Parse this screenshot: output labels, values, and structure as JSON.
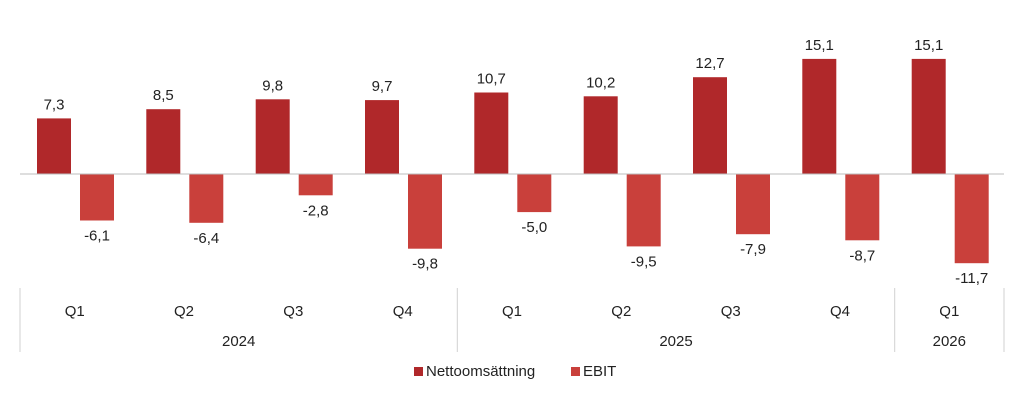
{
  "chart_data": {
    "type": "bar",
    "categories": [
      "Q1",
      "Q2",
      "Q3",
      "Q4",
      "Q1",
      "Q2",
      "Q3",
      "Q4",
      "Q1"
    ],
    "groups": [
      {
        "label": "2024",
        "count": 4
      },
      {
        "label": "2025",
        "count": 4
      },
      {
        "label": "2026",
        "count": 1
      }
    ],
    "series": [
      {
        "name": "Nettoomsättning",
        "color": "#b0282a",
        "values": [
          7.3,
          8.5,
          9.8,
          9.7,
          10.7,
          10.2,
          12.7,
          15.1,
          15.1
        ],
        "labels": [
          "7,3",
          "8,5",
          "9,8",
          "9,7",
          "10,7",
          "10,2",
          "12,7",
          "15,1",
          "15,1"
        ]
      },
      {
        "name": "EBIT",
        "color": "#c9403b",
        "values": [
          -6.1,
          -6.4,
          -2.8,
          -9.8,
          -5.0,
          -9.5,
          -7.9,
          -8.7,
          -11.7
        ],
        "labels": [
          "-6,1",
          "-6,4",
          "-2,8",
          "-9,8",
          "-5,0",
          "-9,5",
          "-7,9",
          "-8,7",
          "-11,7"
        ]
      }
    ],
    "title": "",
    "xlabel": "",
    "ylabel": "",
    "ylim": [
      -12,
      16
    ],
    "grid": false,
    "legend_position": "bottom"
  }
}
